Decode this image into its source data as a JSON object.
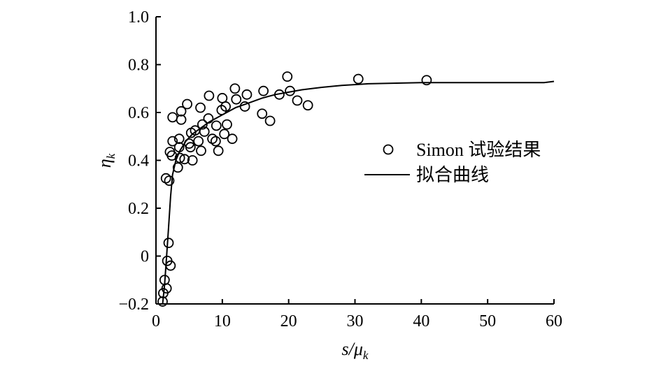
{
  "chart_data": {
    "type": "scatter",
    "xlabel": {
      "main": "s/μ",
      "sub": "k"
    },
    "ylabel": {
      "main": "η",
      "sub": "k"
    },
    "xlim": [
      0,
      60
    ],
    "ylim": [
      -0.2,
      1.0
    ],
    "xticks": [
      0,
      10,
      20,
      30,
      40,
      50,
      60
    ],
    "xtick_labels": [
      "0",
      "10",
      "20",
      "30",
      "40",
      "50",
      "60"
    ],
    "yticks": [
      -0.2,
      0,
      0.2,
      0.4,
      0.6,
      0.8,
      1.0
    ],
    "ytick_labels": [
      "−0.2",
      "0",
      "0.2",
      "0.4",
      "0.6",
      "0.8",
      "1.0"
    ],
    "grid": false,
    "legend_position": "right",
    "series": [
      {
        "name": "Simon 试验结果",
        "kind": "scatter",
        "marker": "open-circle",
        "points": [
          [
            1.0,
            -0.19
          ],
          [
            1.1,
            -0.155
          ],
          [
            1.3,
            -0.1
          ],
          [
            1.6,
            -0.135
          ],
          [
            1.7,
            -0.02
          ],
          [
            1.9,
            0.055
          ],
          [
            2.2,
            -0.04
          ],
          [
            1.5,
            0.325
          ],
          [
            2.0,
            0.315
          ],
          [
            2.1,
            0.435
          ],
          [
            2.4,
            0.42
          ],
          [
            2.5,
            0.48
          ],
          [
            2.5,
            0.58
          ],
          [
            3.3,
            0.37
          ],
          [
            3.5,
            0.49
          ],
          [
            3.6,
            0.41
          ],
          [
            3.5,
            0.455
          ],
          [
            3.8,
            0.57
          ],
          [
            3.8,
            0.605
          ],
          [
            4.3,
            0.405
          ],
          [
            4.7,
            0.635
          ],
          [
            5.0,
            0.47
          ],
          [
            5.2,
            0.455
          ],
          [
            5.3,
            0.515
          ],
          [
            5.5,
            0.4
          ],
          [
            5.9,
            0.525
          ],
          [
            6.4,
            0.48
          ],
          [
            6.8,
            0.44
          ],
          [
            6.7,
            0.62
          ],
          [
            7.0,
            0.55
          ],
          [
            7.3,
            0.52
          ],
          [
            7.9,
            0.575
          ],
          [
            8.0,
            0.67
          ],
          [
            8.5,
            0.49
          ],
          [
            9.0,
            0.48
          ],
          [
            9.1,
            0.545
          ],
          [
            9.4,
            0.44
          ],
          [
            9.9,
            0.61
          ],
          [
            10.0,
            0.66
          ],
          [
            10.3,
            0.51
          ],
          [
            10.5,
            0.625
          ],
          [
            10.7,
            0.55
          ],
          [
            11.5,
            0.49
          ],
          [
            11.9,
            0.7
          ],
          [
            12.1,
            0.655
          ],
          [
            13.4,
            0.625
          ],
          [
            13.7,
            0.675
          ],
          [
            16.0,
            0.595
          ],
          [
            16.2,
            0.69
          ],
          [
            17.2,
            0.565
          ],
          [
            18.6,
            0.675
          ],
          [
            19.8,
            0.75
          ],
          [
            20.2,
            0.69
          ],
          [
            21.3,
            0.65
          ],
          [
            22.9,
            0.63
          ],
          [
            30.5,
            0.74
          ],
          [
            40.8,
            0.735
          ]
        ]
      },
      {
        "name": "拟合曲线",
        "kind": "line",
        "points": [
          [
            1.0,
            -0.2
          ],
          [
            1.3,
            -0.12
          ],
          [
            1.6,
            0.0
          ],
          [
            1.9,
            0.12
          ],
          [
            2.2,
            0.25
          ],
          [
            2.5,
            0.34
          ],
          [
            3.0,
            0.4
          ],
          [
            3.6,
            0.44
          ],
          [
            4.5,
            0.48
          ],
          [
            5.5,
            0.51
          ],
          [
            6.5,
            0.53
          ],
          [
            8.0,
            0.56
          ],
          [
            10.0,
            0.59
          ],
          [
            12.0,
            0.62
          ],
          [
            14.0,
            0.64
          ],
          [
            16.0,
            0.66
          ],
          [
            18.0,
            0.675
          ],
          [
            20.0,
            0.685
          ],
          [
            22.0,
            0.695
          ],
          [
            25.0,
            0.705
          ],
          [
            28.0,
            0.713
          ],
          [
            32.0,
            0.72
          ],
          [
            40.0,
            0.725
          ],
          [
            50.0,
            0.725
          ],
          [
            58.5,
            0.725
          ],
          [
            60.0,
            0.73
          ]
        ]
      }
    ]
  }
}
